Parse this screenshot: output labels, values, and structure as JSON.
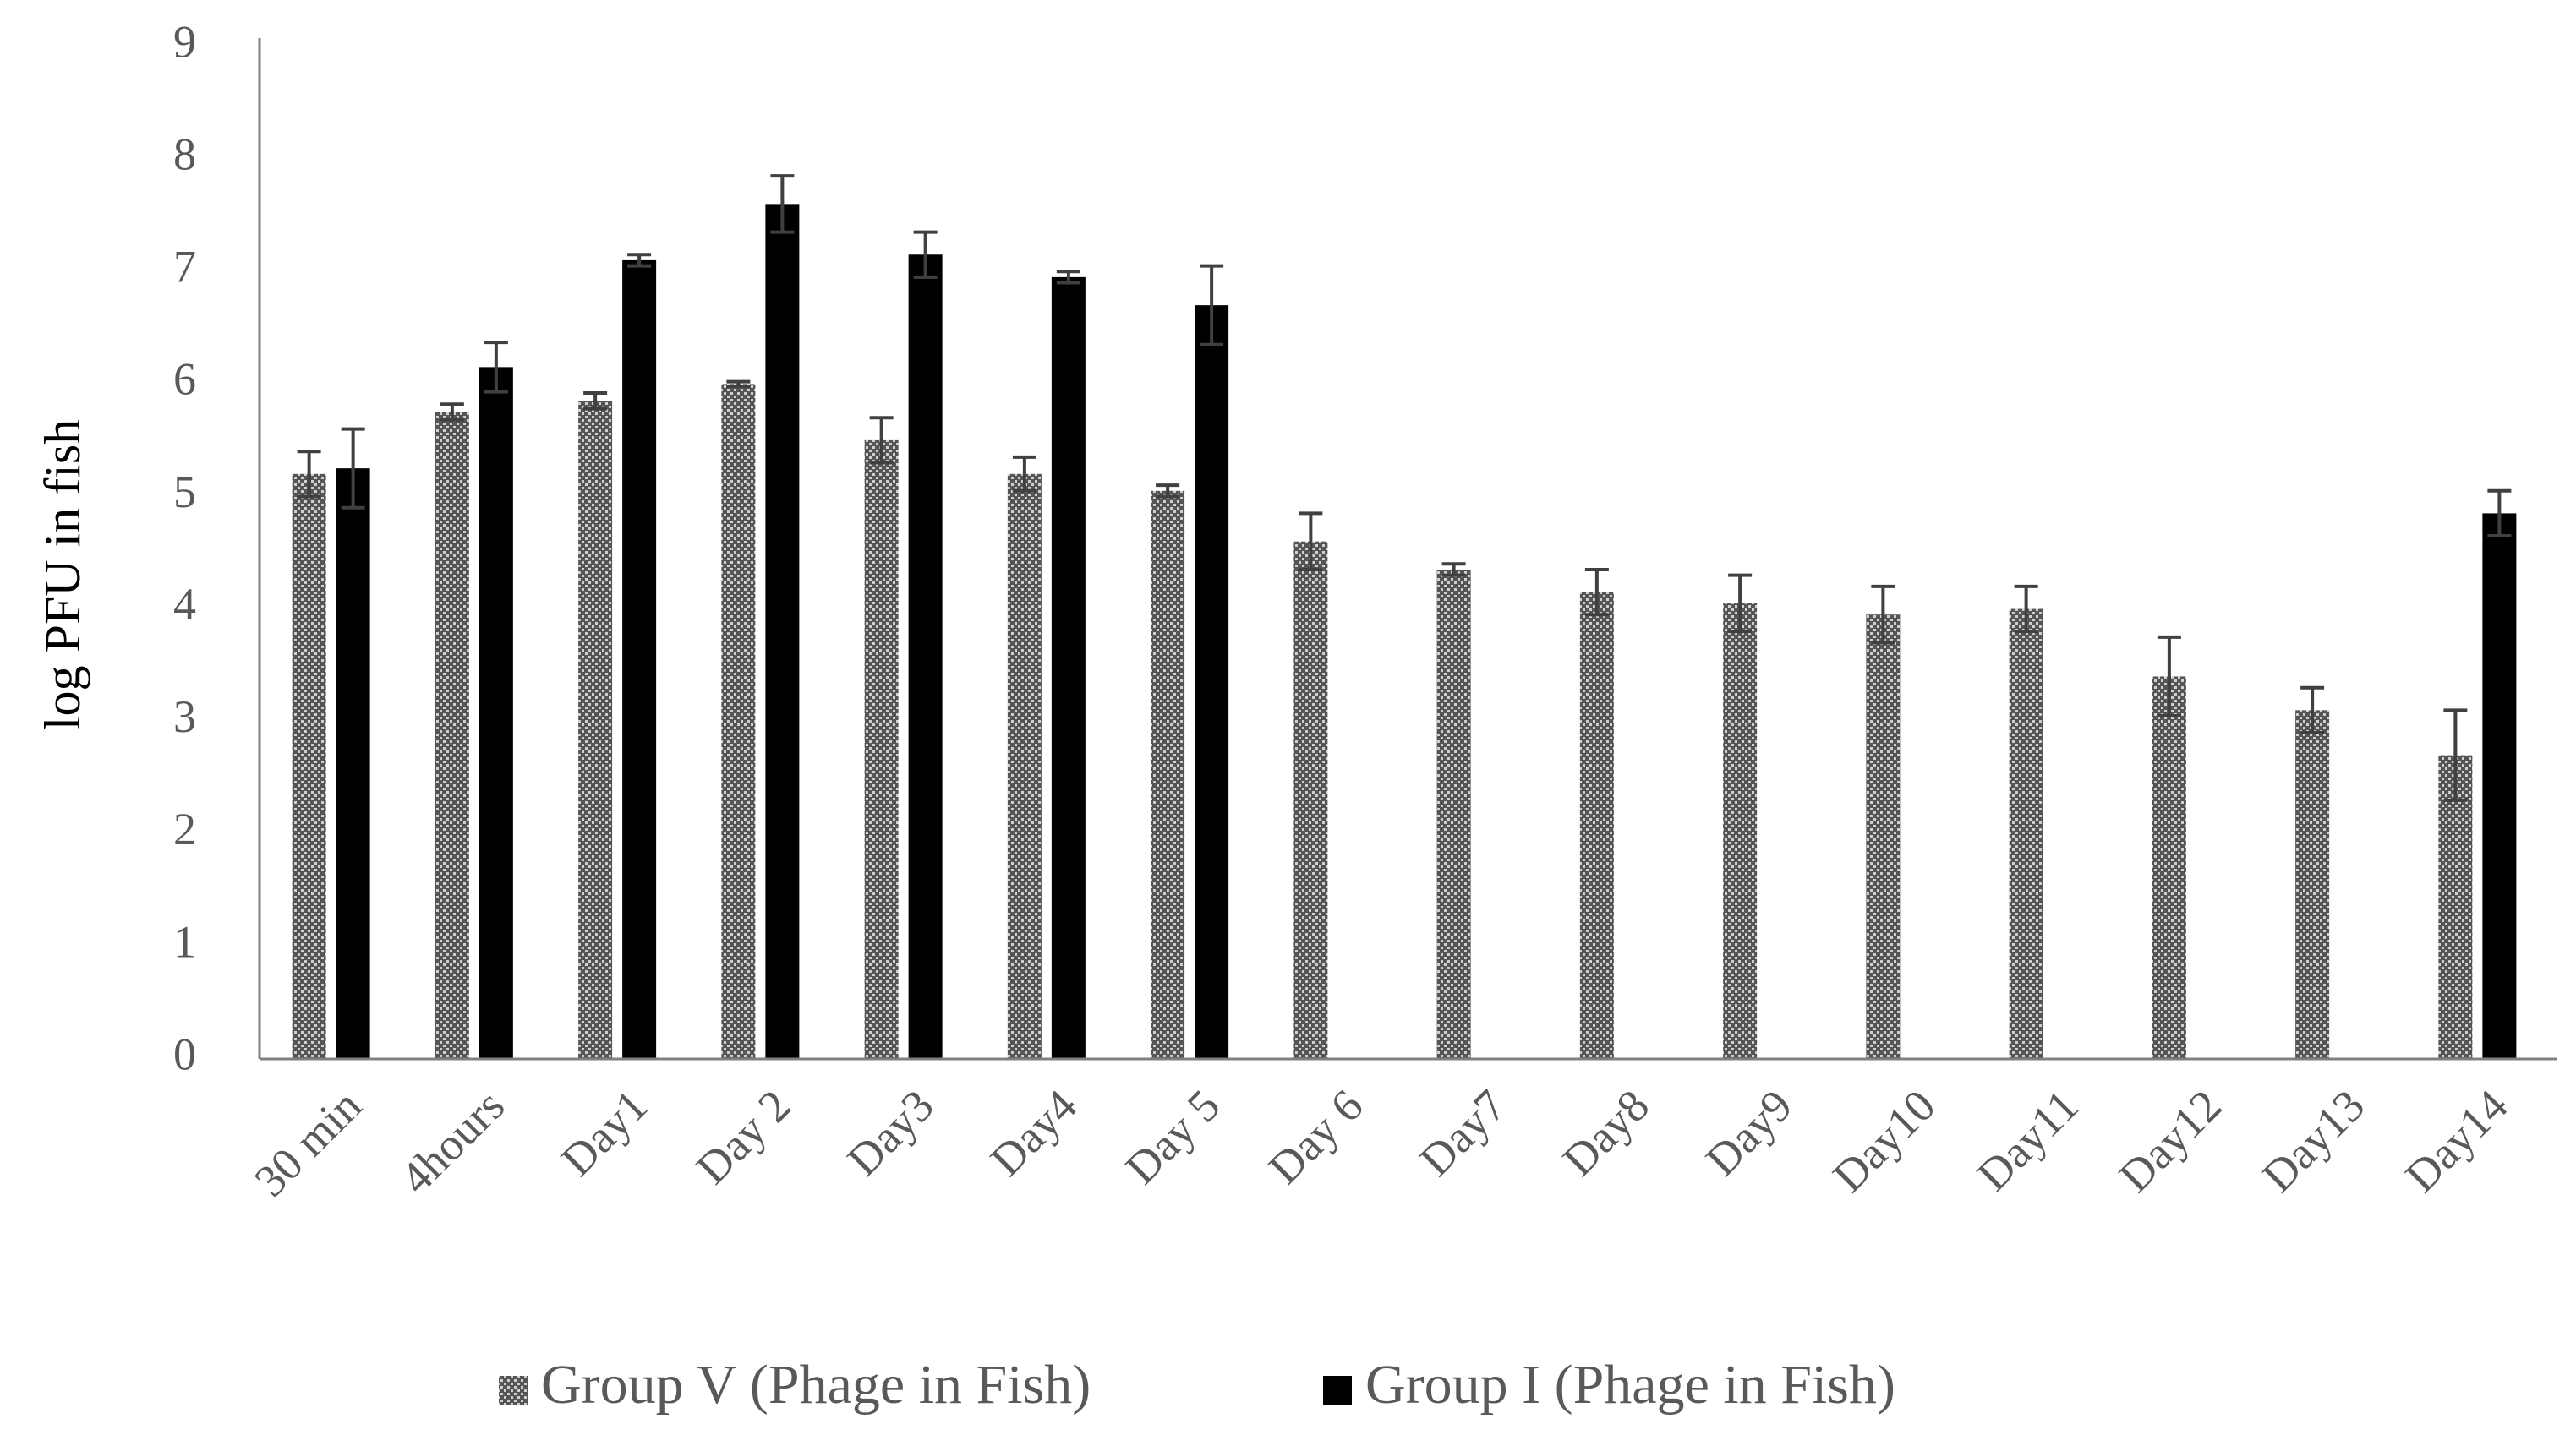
{
  "chart_data": {
    "type": "bar",
    "y_label": "log PFU in fish",
    "categories": [
      "30 min",
      "4hours",
      "Day1",
      "Day 2",
      "Day3",
      "Day4",
      "Day 5",
      "Day 6",
      "Day7",
      "Day8",
      "Day9",
      "Day10",
      "Day11",
      "Day12",
      "Day13",
      "Day14"
    ],
    "series": [
      {
        "name": "Group V (Phage in Fish)",
        "color": "#555555",
        "pattern": true,
        "values": [
          5.2,
          5.75,
          5.85,
          6.0,
          5.5,
          5.2,
          5.05,
          4.6,
          4.35,
          4.15,
          4.05,
          3.95,
          4.0,
          3.4,
          3.1,
          2.7
        ],
        "errors": [
          0.2,
          0.07,
          0.07,
          0.02,
          0.2,
          0.15,
          0.05,
          0.25,
          0.05,
          0.2,
          0.25,
          0.25,
          0.2,
          0.35,
          0.2,
          0.4
        ]
      },
      {
        "name": "Group I (Phage in Fish)",
        "color": "#000000",
        "pattern": false,
        "values": [
          5.25,
          6.15,
          7.1,
          7.6,
          7.15,
          6.95,
          6.7,
          null,
          null,
          null,
          null,
          null,
          null,
          null,
          null,
          4.85
        ],
        "errors": [
          0.35,
          0.22,
          0.05,
          0.25,
          0.2,
          0.05,
          0.35,
          null,
          null,
          null,
          null,
          null,
          null,
          null,
          null,
          0.2
        ]
      }
    ],
    "ylim": [
      0,
      9
    ],
    "yticks": [
      0,
      1,
      2,
      3,
      4,
      5,
      6,
      7,
      8,
      9
    ],
    "grid": false,
    "legend": "bottom"
  }
}
